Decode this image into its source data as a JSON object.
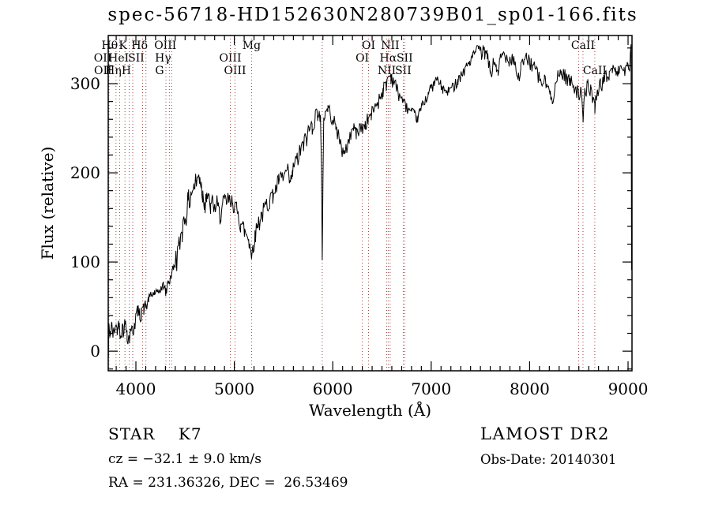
{
  "chart_data": {
    "type": "line",
    "title": "spec-56718-HD152630N280739B01_sp01-166.fits",
    "xlabel": "Wavelength (Å)",
    "ylabel": "Flux (relative)",
    "xlim": [
      3719,
      9040
    ],
    "ylim": [
      -22,
      354
    ],
    "xticks": [
      4000,
      5000,
      6000,
      7000,
      8000,
      9000
    ],
    "yticks": [
      0,
      100,
      200,
      300
    ],
    "x_minor_step": 100,
    "y_minor_step": 20,
    "grid": false,
    "legend": "none",
    "line_color": "#000000",
    "spectral_line_color": "#9a4040",
    "marked_lines": [
      3727,
      3798,
      3835,
      3889,
      3933,
      3968,
      4068,
      4102,
      4305,
      4340,
      4363,
      4959,
      5007,
      5175,
      5893,
      6300,
      6364,
      6548,
      6563,
      6583,
      6716,
      6731,
      8498,
      8542,
      8662
    ],
    "line_labels": [
      {
        "text": "Hθ",
        "wavelength": 3798,
        "row": 1
      },
      {
        "text": "K",
        "wavelength": 3933,
        "row": 1
      },
      {
        "text": "Hδ",
        "wavelength": 4102,
        "row": 1
      },
      {
        "text": "OIII",
        "wavelength": 4363,
        "row": 1
      },
      {
        "text": "Mg",
        "wavelength": 5175,
        "row": 1
      },
      {
        "text": "OI",
        "wavelength": 6364,
        "row": 1
      },
      {
        "text": "NII",
        "wavelength": 6583,
        "row": 1
      },
      {
        "text": "CaII",
        "wavelength": 8542,
        "row": 1
      },
      {
        "text": "OII",
        "wavelength": 3727,
        "row": 2
      },
      {
        "text": "HeI",
        "wavelength": 3889,
        "row": 2
      },
      {
        "text": "SII",
        "wavelength": 4068,
        "row": 2
      },
      {
        "text": "Hγ",
        "wavelength": 4340,
        "row": 2
      },
      {
        "text": "OIII",
        "wavelength": 4959,
        "row": 2
      },
      {
        "text": "OI",
        "wavelength": 6300,
        "row": 2
      },
      {
        "text": "Hα",
        "wavelength": 6563,
        "row": 2
      },
      {
        "text": "SII",
        "wavelength": 6731,
        "row": 2
      },
      {
        "text": "OII",
        "wavelength": 3729,
        "row": 3
      },
      {
        "text": "Hη",
        "wavelength": 3835,
        "row": 3
      },
      {
        "text": "H",
        "wavelength": 3968,
        "row": 3
      },
      {
        "text": "G",
        "wavelength": 4305,
        "row": 3
      },
      {
        "text": "OIII",
        "wavelength": 5007,
        "row": 3
      },
      {
        "text": "NII",
        "wavelength": 6548,
        "row": 3
      },
      {
        "text": "SII",
        "wavelength": 6716,
        "row": 3
      },
      {
        "text": "CaII",
        "wavelength": 8662,
        "row": 3
      }
    ],
    "series": [
      {
        "name": "flux",
        "x": [
          3719,
          3721,
          3724,
          3740,
          3755,
          3770,
          3790,
          3810,
          3830,
          3850,
          3870,
          3890,
          3910,
          3933,
          3950,
          3968,
          3985,
          4000,
          4020,
          4040,
          4060,
          4080,
          4102,
          4130,
          4160,
          4190,
          4220,
          4250,
          4280,
          4305,
          4330,
          4360,
          4385,
          4410,
          4440,
          4470,
          4500,
          4530,
          4560,
          4590,
          4620,
          4650,
          4665,
          4680,
          4700,
          4720,
          4740,
          4760,
          4780,
          4800,
          4820,
          4840,
          4861,
          4880,
          4900,
          4920,
          4940,
          4959,
          4980,
          5007,
          5025,
          5045,
          5065,
          5085,
          5105,
          5125,
          5145,
          5160,
          5175,
          5190,
          5210,
          5240,
          5270,
          5300,
          5330,
          5360,
          5390,
          5420,
          5450,
          5480,
          5510,
          5540,
          5570,
          5590,
          5610,
          5640,
          5670,
          5700,
          5730,
          5760,
          5790,
          5820,
          5850,
          5875,
          5886,
          5893,
          5900,
          5908,
          5925,
          5950,
          5975,
          6000,
          6030,
          6060,
          6090,
          6120,
          6150,
          6180,
          6210,
          6240,
          6270,
          6300,
          6330,
          6360,
          6390,
          6420,
          6450,
          6480,
          6510,
          6540,
          6563,
          6590,
          6620,
          6650,
          6680,
          6710,
          6740,
          6770,
          6800,
          6830,
          6857,
          6880,
          6910,
          6940,
          6970,
          7000,
          7030,
          7060,
          7090,
          7120,
          7150,
          7180,
          7210,
          7240,
          7270,
          7300,
          7330,
          7360,
          7390,
          7420,
          7450,
          7480,
          7510,
          7540,
          7570,
          7600,
          7615,
          7630,
          7660,
          7680,
          7700,
          7730,
          7760,
          7790,
          7820,
          7850,
          7880,
          7910,
          7940,
          7970,
          8000,
          8030,
          8060,
          8090,
          8120,
          8150,
          8180,
          8210,
          8230,
          8260,
          8290,
          8320,
          8350,
          8380,
          8410,
          8440,
          8470,
          8498,
          8520,
          8542,
          8560,
          8590,
          8620,
          8662,
          8690,
          8720,
          8750,
          8780,
          8810,
          8840,
          8870,
          8900,
          8930,
          8960,
          8990,
          9010,
          9022,
          9030,
          9036
        ],
        "y": [
          30,
          -6,
          28,
          22,
          30,
          20,
          28,
          24,
          30,
          22,
          28,
          30,
          24,
          14,
          28,
          20,
          34,
          40,
          44,
          40,
          50,
          46,
          50,
          58,
          63,
          67,
          64,
          70,
          73,
          68,
          78,
          85,
          95,
          105,
          120,
          138,
          152,
          168,
          178,
          186,
          192,
          198,
          188,
          178,
          170,
          178,
          170,
          163,
          170,
          162,
          167,
          160,
          152,
          163,
          170,
          166,
          172,
          164,
          170,
          166,
          158,
          150,
          145,
          141,
          136,
          131,
          128,
          120,
          103,
          120,
          132,
          143,
          152,
          159,
          166,
          172,
          178,
          184,
          190,
          194,
          198,
          203,
          188,
          200,
          210,
          216,
          225,
          232,
          240,
          248,
          255,
          263,
          270,
          262,
          200,
          104,
          190,
          262,
          268,
          272,
          268,
          262,
          252,
          244,
          228,
          220,
          232,
          244,
          250,
          247,
          252,
          250,
          256,
          261,
          266,
          272,
          278,
          286,
          294,
          300,
          308,
          310,
          303,
          295,
          288,
          281,
          276,
          271,
          268,
          266,
          262,
          268,
          276,
          283,
          290,
          296,
          301,
          305,
          300,
          295,
          291,
          292,
          296,
          300,
          305,
          310,
          315,
          320,
          325,
          330,
          336,
          340,
          334,
          338,
          330,
          315,
          310,
          326,
          322,
          308,
          328,
          334,
          330,
          327,
          331,
          326,
          305,
          318,
          324,
          329,
          326,
          321,
          316,
          309,
          300,
          305,
          297,
          289,
          284,
          299,
          309,
          314,
          311,
          307,
          304,
          300,
          297,
          288,
          294,
          260,
          293,
          299,
          296,
          276,
          294,
          299,
          304,
          309,
          313,
          316,
          314,
          317,
          319,
          317,
          319,
          315,
          330,
          345,
          88
        ]
      }
    ],
    "noise_bands": [
      [
        3719,
        4100,
        9
      ],
      [
        4100,
        4400,
        6
      ],
      [
        4400,
        4750,
        12
      ],
      [
        4750,
        5250,
        9
      ],
      [
        5250,
        5900,
        9
      ],
      [
        5900,
        6700,
        7
      ],
      [
        6700,
        7500,
        5
      ],
      [
        7500,
        9040,
        7
      ]
    ]
  },
  "footer": {
    "classification": "STAR    K7",
    "cz": "cz = −32.1 ± 9.0 km/s",
    "ra_dec": "RA = 231.36326, DEC =  26.53469",
    "survey": "LAMOST DR2",
    "obs_date": "Obs-Date: 20140301"
  }
}
